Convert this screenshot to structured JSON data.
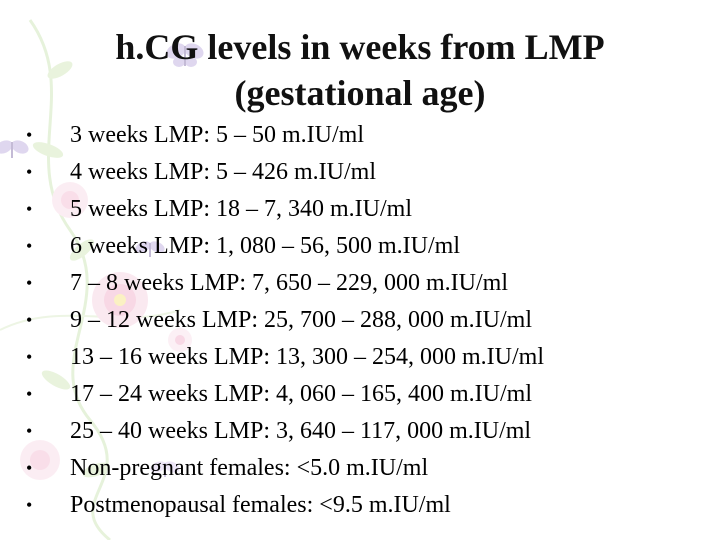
{
  "slide": {
    "title": "h.CG levels in weeks from LMP (gestational age)",
    "bullet_glyph": "•",
    "items": [
      "3 weeks LMP: 5 – 50 m.IU/ml",
      "4 weeks LMP: 5 – 426 m.IU/ml",
      "5 weeks LMP: 18 – 7, 340 m.IU/ml",
      "6 weeks LMP: 1, 080 – 56, 500 m.IU/ml",
      "7 – 8 weeks LMP: 7, 650 – 229, 000 m.IU/ml",
      "9 – 12 weeks LMP: 25, 700 – 288, 000 m.IU/ml",
      "13 – 16 weeks LMP: 13, 300 – 254, 000 m.IU/ml",
      "17 – 24 weeks LMP: 4, 060 – 165, 400 m.IU/ml",
      "25 – 40 weeks LMP: 3, 640 – 117, 000 m.IU/ml",
      "Non-pregnant females: <5.0 m.IU/ml",
      "Postmenopausal females: <9.5 m.IU/ml"
    ]
  },
  "colors": {
    "background": "#ffffff",
    "text": "#000000",
    "blossom_pink": "#f2b8cf",
    "butterfly_purple": "#9a86c6",
    "leaf_green": "#b9d99a"
  },
  "decoration_icons": [
    "flower-blossom-icon",
    "butterfly-icon",
    "leaf-vine-icon"
  ]
}
